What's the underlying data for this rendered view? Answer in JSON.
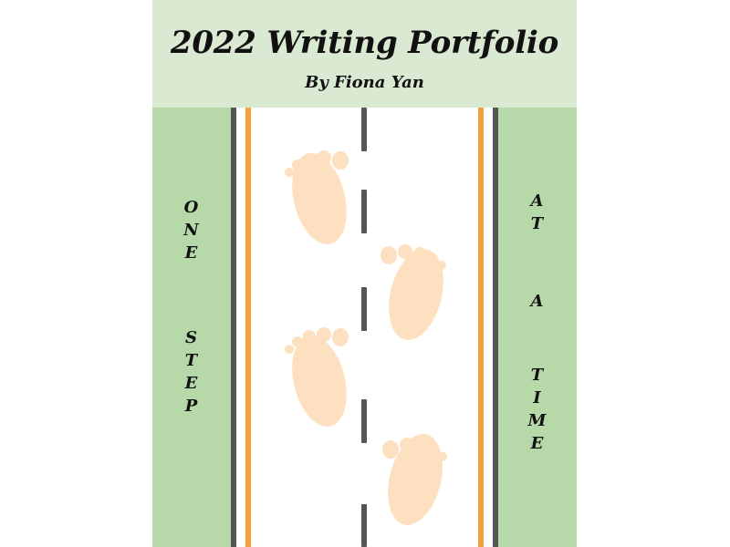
{
  "header": {
    "title": "2022 Writing Portfolio",
    "subtitle": "By Fiona Yan"
  },
  "left_text": {
    "line1": "ONE",
    "line2": "STEP"
  },
  "right_text": {
    "line1": "AT",
    "line2": "A",
    "line3": "TIME"
  },
  "colors": {
    "header_bg": "#d9e9d2",
    "green_strip": "#b7d8a9",
    "road_line_dark": "#555555",
    "road_line_orange": "#f3a13c",
    "footprint": "#fce0c0"
  },
  "icons": {
    "footprint": "footprint-icon"
  }
}
